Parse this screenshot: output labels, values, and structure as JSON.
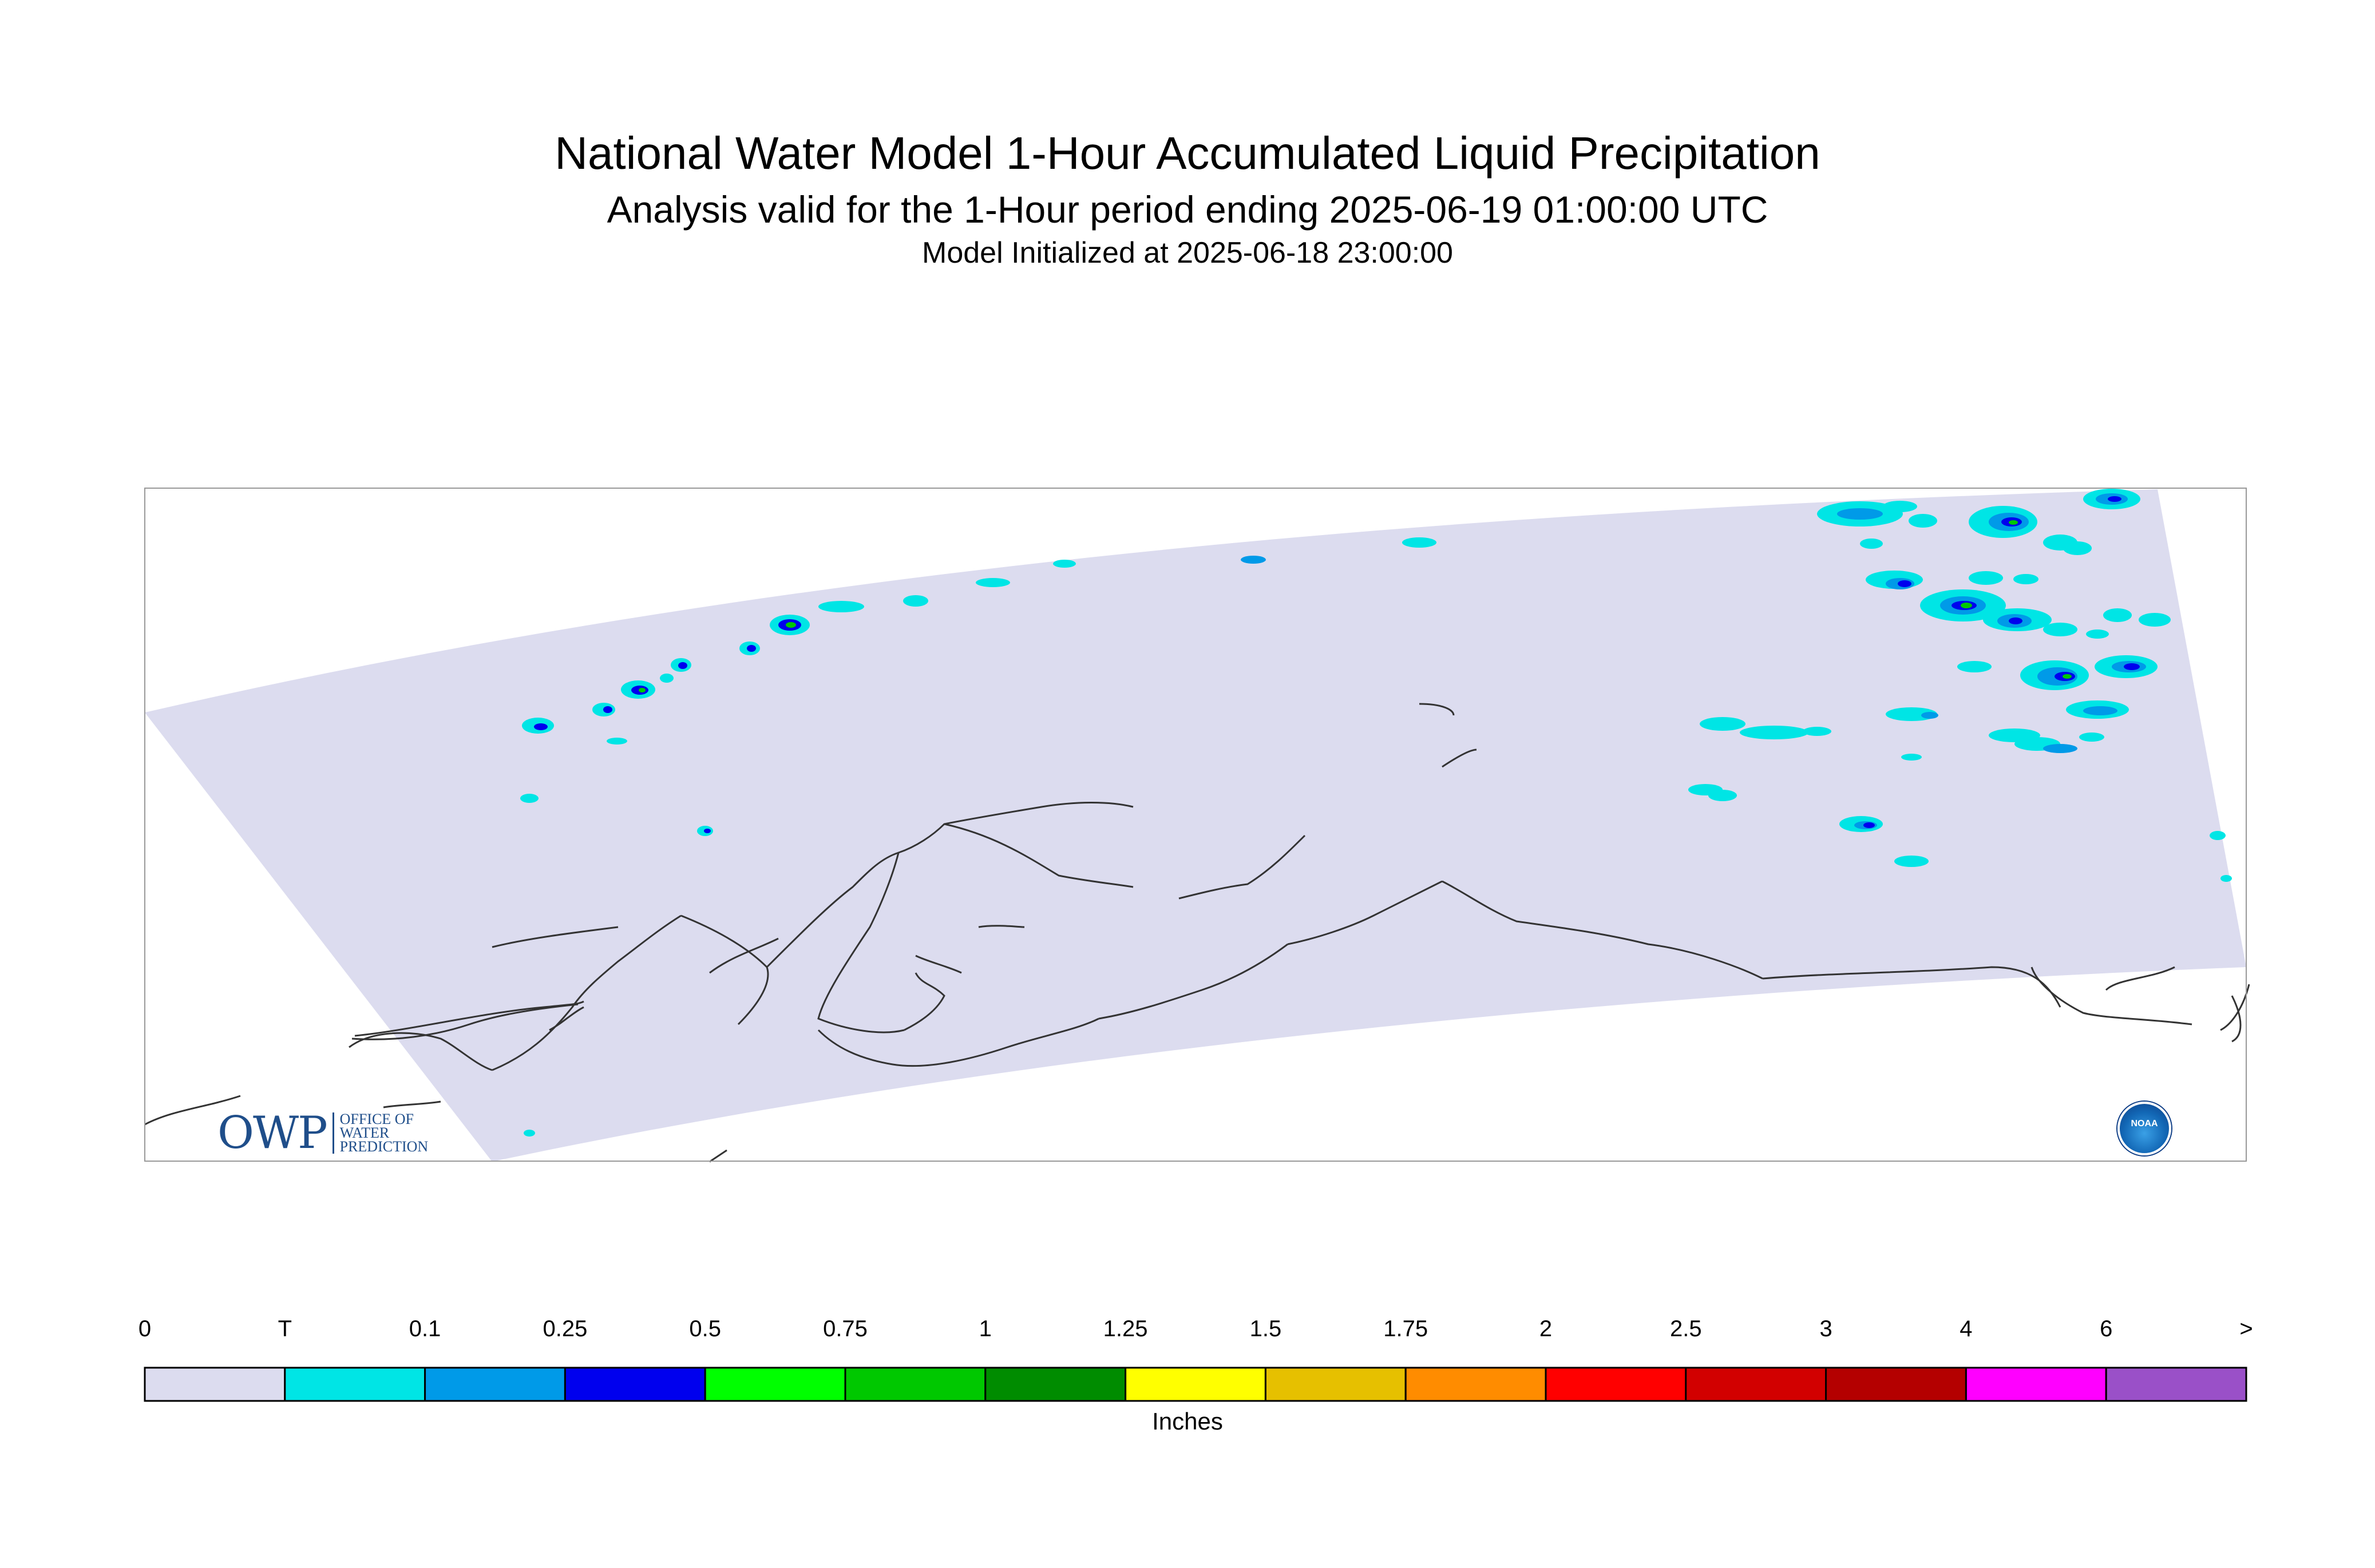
{
  "header": {
    "title": "National Water Model 1-Hour Accumulated Liquid Precipitation",
    "subtitle": "Analysis valid for the 1-Hour period ending 2025-06-19 01:00:00 UTC",
    "init_line": "Model Initialized at 2025-06-18 23:00:00"
  },
  "map": {
    "region_fill": "#dcdcef",
    "frame_color": "#999999",
    "coast_color": "#333333"
  },
  "legend": {
    "labels": [
      "0",
      "T",
      "0.1",
      "0.25",
      "0.5",
      "0.75",
      "1",
      "1.25",
      "1.5",
      "1.75",
      "2",
      "2.5",
      "3",
      "4",
      "6",
      ">"
    ],
    "colors": [
      "#dcdcef",
      "#00e5e5",
      "#009ae8",
      "#0000ee",
      "#00ff00",
      "#00c800",
      "#008c00",
      "#ffff00",
      "#e6c000",
      "#ff8c00",
      "#ff0000",
      "#d20000",
      "#b40000",
      "#ff00ff",
      "#9a50c8"
    ],
    "units": "Inches"
  },
  "branding": {
    "owp_mark": "OWP",
    "owp_lines": [
      "OFFICE OF",
      "WATER",
      "PREDICTION"
    ],
    "noaa_mark": "NOAA"
  }
}
